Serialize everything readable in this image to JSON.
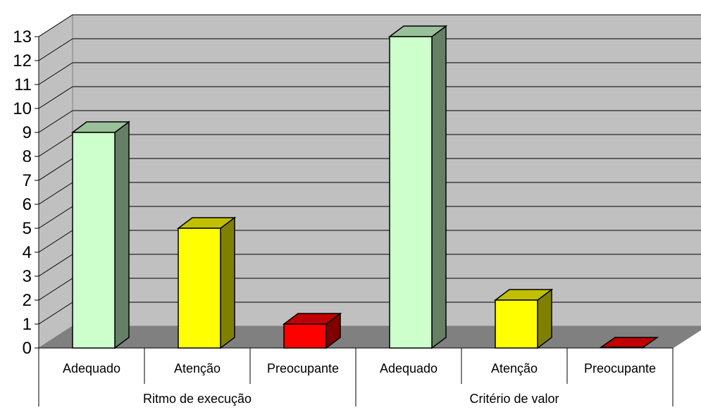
{
  "chart_data": {
    "type": "bar",
    "style": "3d-column",
    "groups": [
      {
        "label": "Ritmo de execução",
        "categories": [
          "Adequado",
          "Atenção",
          "Preocupante"
        ],
        "values": [
          9,
          5,
          1
        ]
      },
      {
        "label": "Critério de valor",
        "categories": [
          "Adequado",
          "Atenção",
          "Preocupante"
        ],
        "values": [
          13,
          2,
          0
        ]
      }
    ],
    "ylim": [
      0,
      13
    ],
    "yticks": [
      "0",
      "1",
      "2",
      "3",
      "4",
      "5",
      "6",
      "7",
      "8",
      "9",
      "10",
      "11",
      "12",
      "13"
    ],
    "grid": true,
    "legend": "none",
    "colors": {
      "Adequado": {
        "front": "#ccffcc",
        "side": "#668066",
        "top": "#99c099"
      },
      "Atenção": {
        "front": "#ffff00",
        "side": "#808000",
        "top": "#c0c000"
      },
      "Preocupante": {
        "front": "#ff0000",
        "side": "#800000",
        "top": "#c00000"
      },
      "wall": "#c0c0c0",
      "floor": "#808080"
    }
  }
}
